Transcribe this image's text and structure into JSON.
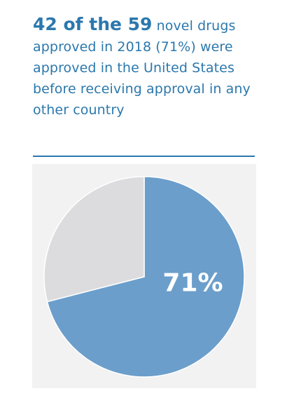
{
  "headline": {
    "lead_bold": "42 of the 59",
    "lead_rest": " novel drugs approved in 2018 (71%) were approved in the United States before receiving approval in any other country"
  },
  "colors": {
    "accent": "#2b78ad",
    "slice_primary": "#6b9ecb",
    "slice_secondary": "#dcdcde",
    "chart_background": "#f2f2f3"
  },
  "chart_data": {
    "type": "pie",
    "title": "",
    "slices": [
      {
        "name": "",
        "value": 71,
        "label": "71%",
        "color": "#6b9ecb"
      },
      {
        "name": "",
        "value": 29,
        "label": "",
        "color": "#dcdcde"
      }
    ]
  }
}
